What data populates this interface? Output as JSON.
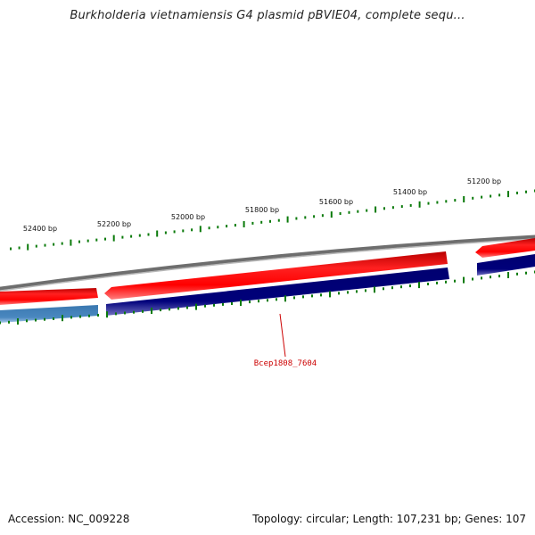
{
  "title": "Burkholderia vietnamiensis G4 plasmid pBVIE04, complete sequ...",
  "ticks": {
    "labels": [
      "52400 bp",
      "52200 bp",
      "52000 bp",
      "51800 bp",
      "51600 bp",
      "51400 bp",
      "51200 bp"
    ],
    "color": "#0a7a0a"
  },
  "gene_label": {
    "text": "Bcep1808_7604",
    "color": "#cc0000"
  },
  "colors": {
    "forward_strand": "#ff0000",
    "reverse_strand": "#000080",
    "reverse_strand_light": "#4682b4",
    "backbone": "#808080"
  },
  "footer": {
    "accession": "Accession: NC_009228",
    "summary": "Topology: circular; Length: 107,231 bp; Genes: 107"
  }
}
